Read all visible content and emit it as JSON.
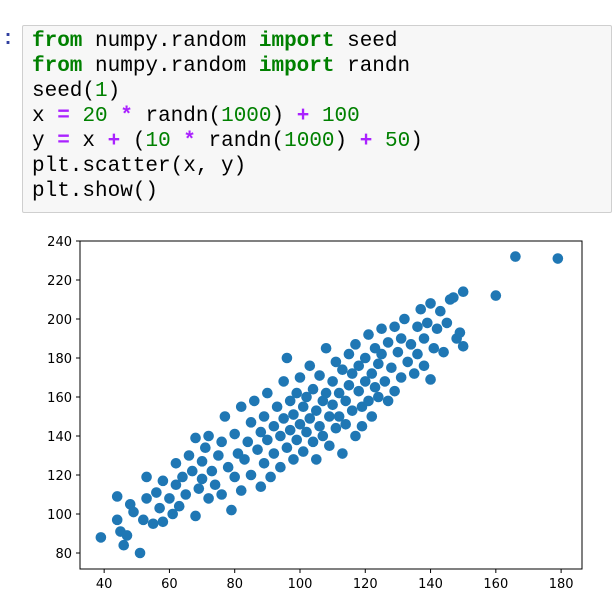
{
  "prompt": ":",
  "code": {
    "lines": [
      [
        "from",
        " numpy.random ",
        "import",
        " seed"
      ],
      [
        "from",
        " numpy.random ",
        "import",
        " randn"
      ],
      [
        "seed(",
        "1",
        ")"
      ],
      [
        "x ",
        "=",
        " ",
        "20",
        " ",
        "*",
        " randn(",
        "1000",
        ") ",
        "+",
        " ",
        "100"
      ],
      [
        "y ",
        "=",
        " x ",
        "+",
        " (",
        "10",
        " ",
        "*",
        " randn(",
        "1000",
        ") ",
        "+",
        " ",
        "50",
        ")"
      ],
      [
        "plt.scatter(x, y)"
      ],
      [
        "plt.show()"
      ]
    ]
  },
  "chart_data": {
    "type": "scatter",
    "color": "#1f77b4",
    "x": [
      39,
      44,
      44,
      45,
      46,
      47,
      48,
      49,
      51,
      52,
      53,
      53,
      55,
      56,
      57,
      58,
      58,
      60,
      61,
      62,
      62,
      63,
      64,
      65,
      66,
      67,
      68,
      68,
      69,
      70,
      70,
      71,
      72,
      72,
      73,
      74,
      75,
      76,
      76,
      77,
      78,
      79,
      80,
      80,
      81,
      82,
      82,
      83,
      84,
      85,
      85,
      86,
      87,
      88,
      88,
      89,
      89,
      90,
      90,
      91,
      92,
      92,
      93,
      94,
      94,
      95,
      95,
      96,
      96,
      97,
      97,
      98,
      98,
      99,
      99,
      100,
      100,
      101,
      101,
      102,
      102,
      103,
      103,
      104,
      104,
      105,
      105,
      106,
      106,
      107,
      107,
      108,
      108,
      109,
      109,
      110,
      110,
      111,
      111,
      112,
      112,
      113,
      113,
      114,
      114,
      115,
      115,
      116,
      116,
      117,
      117,
      118,
      118,
      119,
      119,
      120,
      120,
      121,
      121,
      122,
      122,
      123,
      123,
      124,
      124,
      125,
      125,
      126,
      127,
      127,
      128,
      129,
      129,
      130,
      131,
      131,
      132,
      133,
      134,
      135,
      136,
      136,
      137,
      138,
      138,
      139,
      140,
      140,
      141,
      142,
      143,
      144,
      145,
      146,
      147,
      148,
      149,
      150,
      150,
      160,
      166,
      179
    ],
    "values": [
      88,
      109,
      97,
      91,
      84,
      89,
      105,
      101,
      80,
      97,
      119,
      108,
      95,
      111,
      103,
      117,
      96,
      108,
      100,
      115,
      126,
      104,
      119,
      110,
      130,
      122,
      99,
      139,
      113,
      127,
      118,
      134,
      108,
      140,
      122,
      115,
      130,
      110,
      137,
      150,
      124,
      102,
      141,
      119,
      131,
      155,
      112,
      128,
      137,
      147,
      120,
      158,
      133,
      114,
      142,
      126,
      150,
      138,
      162,
      119,
      145,
      131,
      155,
      140,
      124,
      168,
      149,
      134,
      180,
      143,
      158,
      128,
      151,
      162,
      138,
      146,
      170,
      132,
      155,
      160,
      142,
      176,
      149,
      137,
      164,
      153,
      128,
      145,
      171,
      158,
      140,
      185,
      162,
      150,
      135,
      168,
      156,
      144,
      178,
      162,
      150,
      131,
      174,
      158,
      146,
      182,
      166,
      153,
      172,
      140,
      187,
      163,
      176,
      155,
      145,
      180,
      168,
      192,
      158,
      172,
      150,
      185,
      165,
      177,
      160,
      195,
      182,
      168,
      188,
      158,
      175,
      196,
      163,
      183,
      190,
      170,
      200,
      178,
      187,
      172,
      196,
      182,
      205,
      190,
      176,
      198,
      208,
      169,
      185,
      195,
      204,
      183,
      198,
      210,
      211,
      190,
      193,
      214,
      186,
      212,
      232,
      231
    ],
    "xlim": [
      32.6,
      186.4
    ],
    "ylim": [
      71.8,
      240
    ],
    "xticks": [
      40,
      60,
      80,
      100,
      120,
      140,
      160,
      180
    ],
    "yticks": [
      80,
      100,
      120,
      140,
      160,
      180,
      200,
      220,
      240
    ]
  }
}
